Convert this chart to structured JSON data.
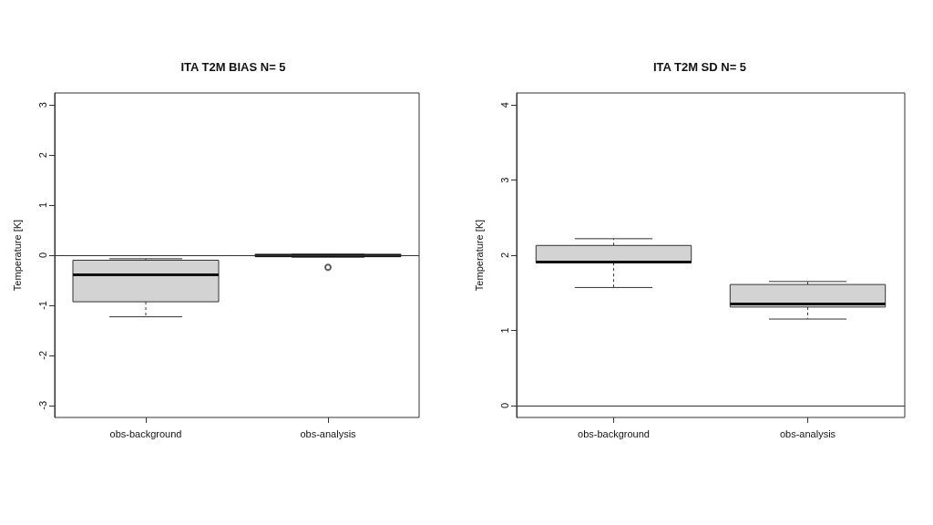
{
  "chart_data": [
    {
      "type": "box",
      "title": "ITA T2M BIAS N= 5",
      "ylabel": "Temperature [K]",
      "categories": [
        "obs-background",
        "obs-analysis"
      ],
      "color": "#d3d3d3",
      "boxes": [
        {
          "low": -1.23,
          "q1": -0.93,
          "median": -0.39,
          "q3": -0.1,
          "high": -0.07
        },
        {
          "low": -0.04,
          "q1": -0.03,
          "median": -0.01,
          "q3": 0.02,
          "high": 0.02,
          "outliers": [
            -0.24
          ]
        }
      ],
      "ylim": [
        -3.24,
        3.24
      ],
      "yticks": [
        -3,
        -2,
        -1,
        0,
        1,
        2,
        3
      ],
      "ref_lines": [
        {
          "axis": "y",
          "value": 0
        }
      ]
    },
    {
      "type": "box",
      "title": "ITA T2M SD N= 5",
      "ylabel": "Temperature [K]",
      "categories": [
        "obs-background",
        "obs-analysis"
      ],
      "color": "#d3d3d3",
      "boxes": [
        {
          "low": 1.57,
          "q1": 1.9,
          "median": 1.91,
          "q3": 2.13,
          "high": 2.22
        },
        {
          "low": 1.15,
          "q1": 1.31,
          "median": 1.35,
          "q3": 1.61,
          "high": 1.65
        }
      ],
      "ylim": [
        -0.16,
        4.16
      ],
      "yticks": [
        0,
        1,
        2,
        3,
        4
      ],
      "ref_lines": [
        {
          "axis": "y",
          "value": 0
        }
      ]
    }
  ]
}
